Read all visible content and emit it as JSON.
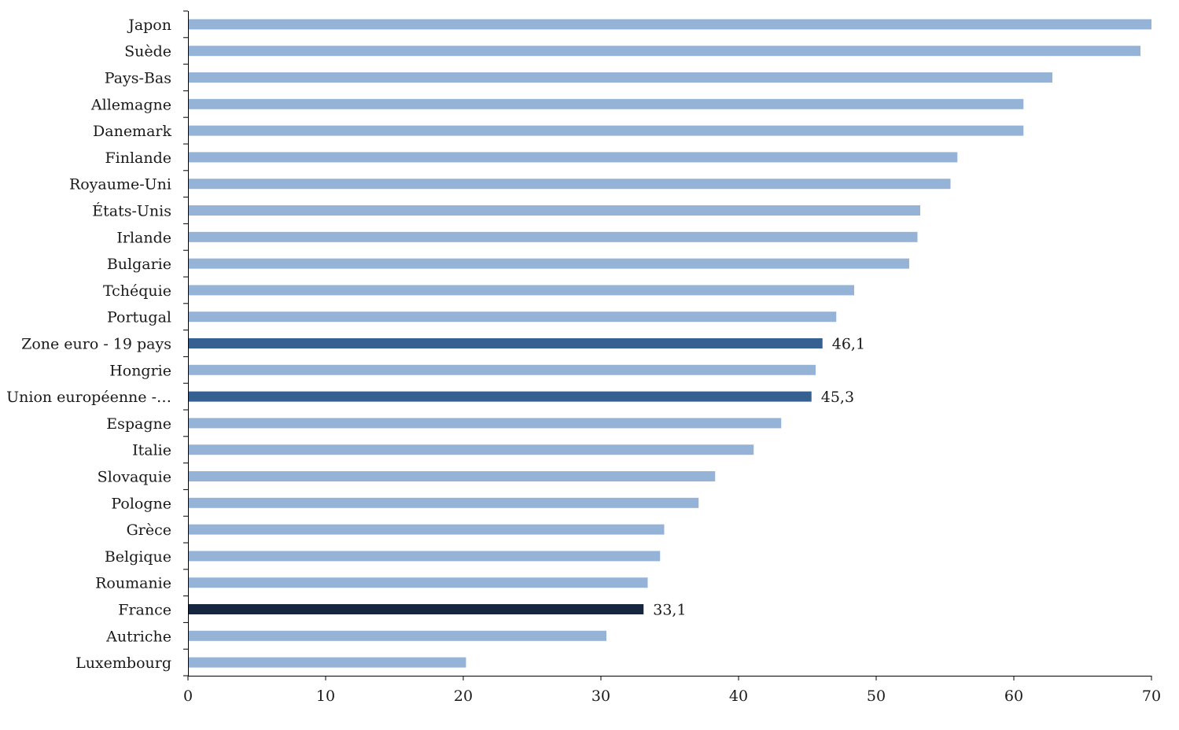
{
  "chart_data": {
    "type": "bar",
    "orientation": "horizontal",
    "categories": [
      "Japon",
      "Suède",
      "Pays-Bas",
      "Allemagne",
      "Danemark",
      "Finlande",
      "Royaume-Uni",
      "États-Unis",
      "Irlande",
      "Bulgarie",
      "Tchéquie",
      "Portugal",
      "Zone euro - 19 pays",
      "Hongrie",
      "Union européenne -…",
      "Espagne",
      "Italie",
      "Slovaquie",
      "Pologne",
      "Grèce",
      "Belgique",
      "Roumanie",
      "France",
      "Autriche",
      "Luxembourg"
    ],
    "values": [
      70.0,
      69.2,
      62.8,
      60.7,
      60.7,
      55.9,
      55.4,
      53.2,
      53.0,
      52.4,
      48.4,
      47.1,
      46.1,
      45.6,
      45.3,
      43.1,
      41.1,
      38.3,
      37.1,
      34.6,
      34.3,
      33.4,
      33.1,
      30.4,
      20.2
    ],
    "highlight": {
      "Zone euro - 19 pays": "medium",
      "Union européenne -…": "medium",
      "France": "dark"
    },
    "data_labels": {
      "Zone euro - 19 pays": "46,1",
      "Union européenne -…": "45,3",
      "France": "33,1"
    },
    "xlim": [
      0,
      70
    ],
    "xticks": [
      0,
      10,
      20,
      30,
      40,
      50,
      60,
      70
    ],
    "colors": {
      "default": "#95b3d7",
      "medium": "#376092",
      "dark": "#17263f"
    },
    "title": "",
    "xlabel": "",
    "ylabel": "",
    "grid": false,
    "legend": "none"
  }
}
